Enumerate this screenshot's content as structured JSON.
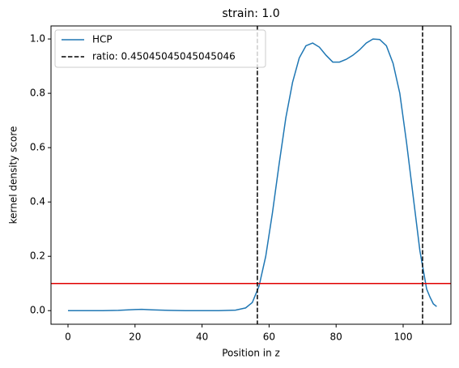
{
  "chart_data": {
    "type": "line",
    "title": "strain: 1.0",
    "x_label": "Position in z",
    "y_label": "kernel density score",
    "x": [
      0,
      5,
      10,
      15,
      20,
      22,
      25,
      30,
      35,
      40,
      45,
      50,
      53,
      55,
      57,
      59,
      61,
      63,
      65,
      67,
      69,
      71,
      73,
      75,
      77,
      79,
      81,
      83,
      85,
      87,
      89,
      91,
      93,
      95,
      97,
      99,
      101,
      103,
      105,
      107,
      108,
      109,
      110
    ],
    "series": [
      {
        "name": "HCP",
        "color": "#1f77b4",
        "values": [
          0,
          0,
          0,
          0.001,
          0.004,
          0.005,
          0.003,
          0.001,
          0,
          0,
          0,
          0.002,
          0.01,
          0.03,
          0.09,
          0.2,
          0.36,
          0.54,
          0.71,
          0.84,
          0.93,
          0.975,
          0.985,
          0.97,
          0.94,
          0.915,
          0.915,
          0.925,
          0.94,
          0.96,
          0.985,
          1.0,
          0.998,
          0.975,
          0.91,
          0.8,
          0.62,
          0.42,
          0.22,
          0.08,
          0.05,
          0.025,
          0.015
        ]
      }
    ],
    "vlines": {
      "name": "ratio: 0.45045045045045046",
      "color": "#000000",
      "values": [
        56.5,
        105.8
      ]
    },
    "hlines": {
      "color": "#e00000",
      "values": [
        0.1
      ]
    },
    "xlim": [
      -5.07,
      114.25
    ],
    "ylim": [
      -0.05,
      1.048
    ],
    "xticks": [
      0,
      20,
      40,
      60,
      80,
      100
    ],
    "yticks": [
      {
        "value": 0,
        "label": "0.0"
      },
      0.2,
      0.4,
      0.6,
      0.8,
      {
        "value": 1,
        "label": "1.0"
      }
    ],
    "legend": "upper left"
  }
}
